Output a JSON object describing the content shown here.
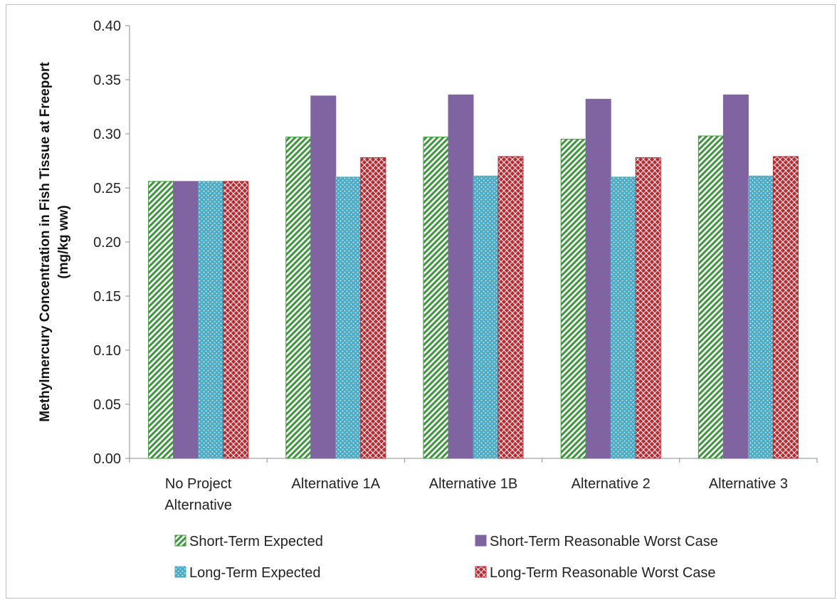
{
  "chart_data": {
    "type": "bar",
    "title": "",
    "xlabel": "",
    "ylabel_lines": [
      "Methylmercury Concentration in Fish Tissue at Freeport",
      "(mg/kg ww)"
    ],
    "ylim": [
      0,
      0.4
    ],
    "yticks": [
      "0.00",
      "0.05",
      "0.10",
      "0.15",
      "0.20",
      "0.25",
      "0.30",
      "0.35",
      "0.40"
    ],
    "grid": false,
    "legend_position": "bottom",
    "categories": [
      [
        "No Project",
        "Alternative"
      ],
      [
        "Alternative 1A"
      ],
      [
        "Alternative 1B"
      ],
      [
        "Alternative 2"
      ],
      [
        "Alternative 3"
      ]
    ],
    "series": [
      {
        "name": "Short-Term Expected",
        "values": [
          0.256,
          0.297,
          0.297,
          0.295,
          0.298
        ],
        "color": "#3a9a3a",
        "pattern": "diagonal-stripes"
      },
      {
        "name": "Short-Term Reasonable Worst Case",
        "values": [
          0.256,
          0.335,
          0.336,
          0.332,
          0.336
        ],
        "color": "#8064a2",
        "pattern": "solid"
      },
      {
        "name": "Long-Term Expected",
        "values": [
          0.256,
          0.26,
          0.261,
          0.26,
          0.261
        ],
        "color": "#4bacc6",
        "pattern": "dots"
      },
      {
        "name": "Long-Term Reasonable Worst Case",
        "values": [
          0.256,
          0.278,
          0.279,
          0.278,
          0.279
        ],
        "color": "#c0262d",
        "pattern": "crosshatch"
      }
    ]
  }
}
